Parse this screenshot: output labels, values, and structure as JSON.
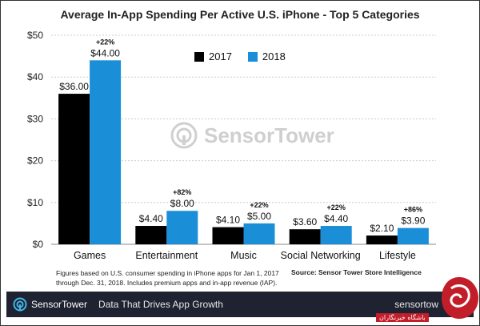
{
  "chart_data": {
    "type": "bar",
    "title": "Average In-App Spending Per Active U.S. iPhone - Top 5 Categories",
    "categories": [
      "Games",
      "Entertainment",
      "Music",
      "Social Networking",
      "Lifestyle"
    ],
    "series": [
      {
        "name": "2017",
        "values": [
          36.0,
          4.4,
          4.1,
          3.6,
          2.1
        ],
        "color": "#000000"
      },
      {
        "name": "2018",
        "values": [
          44.0,
          8.0,
          5.0,
          4.4,
          3.9
        ],
        "color": "#1a8fd8"
      }
    ],
    "value_labels": {
      "2017": [
        "$36.00",
        "$4.40",
        "$4.10",
        "$3.60",
        "$2.10"
      ],
      "2018": [
        "$44.00",
        "$8.00",
        "$5.00",
        "$4.40",
        "$3.90"
      ]
    },
    "growth_labels": [
      "+22%",
      "+82%",
      "+22%",
      "+22%",
      "+86%"
    ],
    "ylim": [
      0,
      50
    ],
    "yticks": [
      "$0",
      "$10",
      "$20",
      "$30",
      "$40",
      "$50"
    ],
    "ytick_values": [
      0,
      10,
      20,
      30,
      40,
      50
    ],
    "grid": true,
    "legend": "top-center"
  },
  "watermark": "SensorTower",
  "footnote": "Figures based on U.S. consumer spending in iPhone apps for Jan 1, 2017 through Dec. 31, 2018. Includes premium apps and in-app revenue (IAP).",
  "source": "Source: Sensor Tower Store Intelligence",
  "footer": {
    "brand": "SensorTower",
    "tagline": "Data That Drives App Growth",
    "site": "sensortow"
  },
  "badge_text": "باشگاه خبرنگاران",
  "colors": {
    "accent": "#1a8fd8",
    "footer_bg": "#1f2230",
    "badge": "#c21e2a"
  }
}
